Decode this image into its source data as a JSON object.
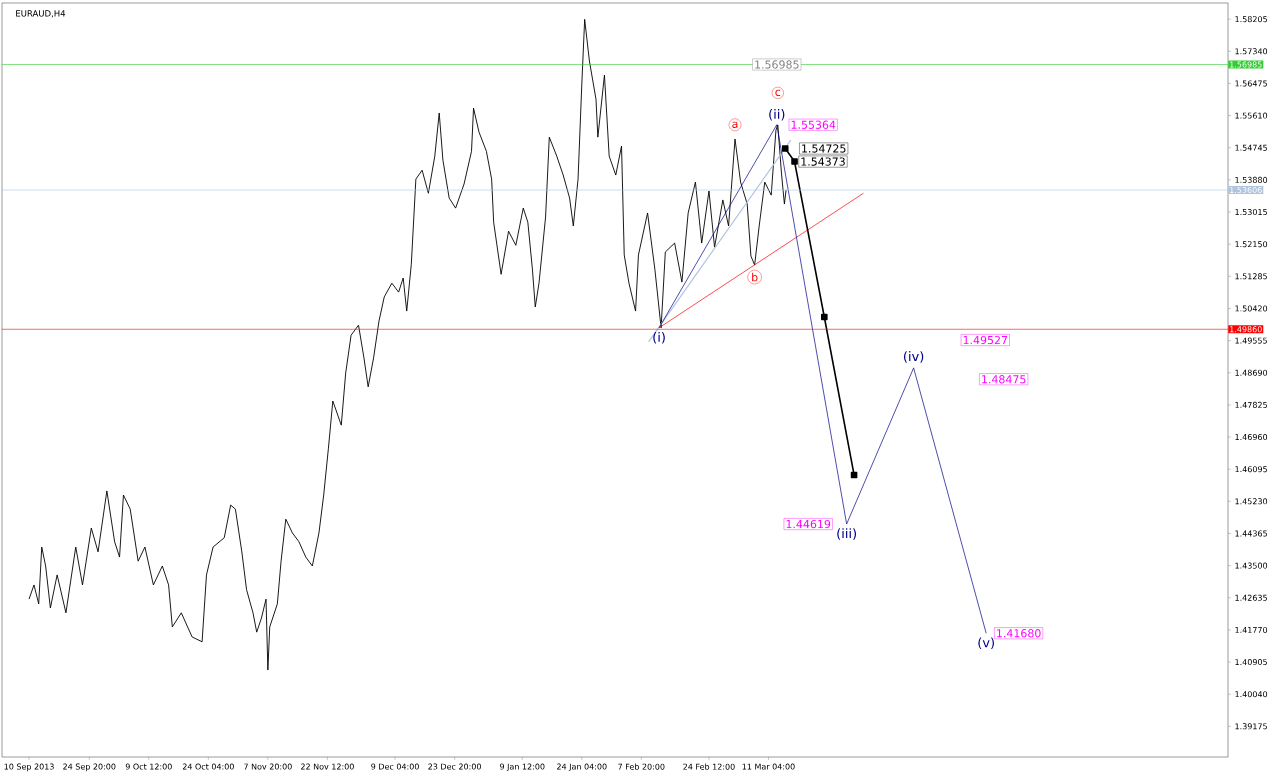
{
  "chart_data": {
    "type": "line",
    "title": "EURAUD,H4",
    "xlim": [
      "2013-09-03T08:00",
      "2014-07-02T09:00"
    ],
    "ylim": [
      1.3835,
      1.5864
    ],
    "xticks": [
      {
        "value": "2013-09-10T00:00",
        "label": "10 Sep 2013"
      },
      {
        "value": "2013-09-24T20:00",
        "label": "24 Sep 20:00"
      },
      {
        "value": "2013-10-09T12:00",
        "label": "9 Oct 12:00"
      },
      {
        "value": "2013-10-24T04:00",
        "label": "24 Oct 04:00"
      },
      {
        "value": "2013-11-07T20:00",
        "label": "7 Nov 20:00"
      },
      {
        "value": "2013-11-22T12:00",
        "label": "22 Nov 12:00"
      },
      {
        "value": "2013-12-09T04:00",
        "label": "9 Dec 04:00"
      },
      {
        "value": "2013-12-23T20:00",
        "label": "23 Dec 20:00"
      },
      {
        "value": "2014-01-09T12:00",
        "label": "9 Jan 12:00"
      },
      {
        "value": "2014-01-24T04:00",
        "label": "24 Jan 04:00"
      },
      {
        "value": "2014-02-07T20:00",
        "label": "7 Feb 20:00"
      },
      {
        "value": "2014-02-24T12:00",
        "label": "24 Feb 12:00"
      },
      {
        "value": "2014-03-11T04:00",
        "label": "11 Mar 04:00"
      }
    ],
    "yticks": [
      1.58205,
      {
        "value": 1.5734,
        "label": "1.57340"
      },
      1.56475,
      {
        "value": 1.5561,
        "label": "1.55610"
      },
      1.54745,
      {
        "value": 1.5388,
        "label": "1.53880"
      },
      1.53015,
      {
        "value": 1.5215,
        "label": "1.52150"
      },
      1.51285,
      {
        "value": 1.5042,
        "label": "1.50420"
      },
      1.49555,
      {
        "value": 1.4869,
        "label": "1.48690"
      },
      1.47825,
      {
        "value": 1.4696,
        "label": "1.46960"
      },
      1.46095,
      {
        "value": 1.4523,
        "label": "1.45230"
      },
      1.44365,
      {
        "value": 1.435,
        "label": "1.43500"
      },
      1.42635,
      {
        "value": 1.4177,
        "label": "1.41770"
      },
      1.40905,
      {
        "value": 1.4004,
        "label": "1.40040"
      },
      1.39175
    ],
    "series": [
      {
        "color": "#000000",
        "x": [
          "2013-09-10T00:00",
          "2013-09-11T05:00",
          "2013-09-12T09:00",
          "2013-09-13T03:00",
          "2013-09-14T02:00",
          "2013-09-15T06:00",
          "2013-09-16T22:00",
          "2013-09-19T02:00",
          "2013-09-21T12:00",
          "2013-09-23T04:00",
          "2013-09-25T08:00",
          "2013-09-27T00:00",
          "2013-09-29T04:00",
          "2013-10-01T02:00",
          "2013-10-02T07:00",
          "2013-10-03T06:00",
          "2013-10-04T22:00",
          "2013-10-06T21:00",
          "2013-10-08T13:00",
          "2013-10-10T15:00",
          "2013-10-12T20:00",
          "2013-10-14T09:00",
          "2013-10-15T07:00",
          "2013-10-17T12:00",
          "2013-10-20T04:00",
          "2013-10-22T15:00",
          "2013-10-23T17:00",
          "2013-10-25T08:00",
          "2013-10-28T02:00",
          "2013-10-29T16:00",
          "2013-10-30T20:00",
          "2013-11-01T10:00",
          "2013-11-02T14:00",
          "2013-11-04T04:00",
          "2013-11-05T02:00",
          "2013-11-06T06:00",
          "2013-11-07T09:00",
          "2013-11-07T20:00",
          "2013-11-08T07:00",
          "2013-11-10T04:00",
          "2013-11-11T02:00",
          "2013-11-12T06:00",
          "2013-11-13T21:00",
          "2013-11-15T12:00",
          "2013-11-17T04:00",
          "2013-11-18T19:00",
          "2013-11-20T10:00",
          "2013-11-21T14:00",
          "2013-11-22T18:00",
          "2013-11-23T20:00",
          "2013-11-25T22:00",
          "2013-11-27T00:00",
          "2013-11-28T08:00",
          "2013-11-30T04:00",
          "2013-12-01T12:00",
          "2013-12-02T13:00",
          "2013-12-03T21:00",
          "2013-12-05T05:00",
          "2013-12-06T12:00",
          "2013-12-08T09:00",
          "2013-12-10T01:00",
          "2013-12-11T04:00",
          "2013-12-12T01:00",
          "2013-12-13T04:00",
          "2013-12-14T07:00",
          "2013-12-15T20:00",
          "2013-12-17T09:00",
          "2013-12-18T23:00",
          "2013-12-20T01:00",
          "2013-12-20T23:00",
          "2013-12-22T12:00",
          "2013-12-24T02:00",
          "2013-12-26T04:00",
          "2013-12-28T00:00",
          "2013-12-28T12:00",
          "2013-12-29T20:00",
          "2013-12-31T16:00",
          "2014-01-01T23:00",
          "2014-01-02T11:00",
          "2014-01-04T07:00",
          "2014-01-06T03:00",
          "2014-01-07T22:00",
          "2014-01-09T18:00",
          "2014-01-10T21:00",
          "2014-01-12T00:00",
          "2014-01-12T17:00",
          "2014-01-13T15:00",
          "2014-01-15T06:00",
          "2014-01-16T04:00",
          "2014-01-18T00:00",
          "2014-01-19T14:00",
          "2014-01-21T04:00",
          "2014-01-22T02:00",
          "2014-01-23T06:00",
          "2014-01-24T04:00",
          "2014-01-24T21:00",
          "2014-01-26T01:00",
          "2014-01-27T16:00",
          "2014-01-28T03:00",
          "2014-01-29T18:00",
          "2014-01-30T22:00",
          "2014-02-01T13:00",
          "2014-02-02T23:00",
          "2014-02-03T15:00",
          "2014-02-04T19:00",
          "2014-02-06T10:00",
          "2014-02-07T03:00",
          "2014-02-09T09:00",
          "2014-02-11T04:00",
          "2014-02-12T17:00",
          "2014-02-13T18:00",
          "2014-02-16T01:00",
          "2014-02-17T20:00",
          "2014-02-19T09:00",
          "2014-02-21T04:00",
          "2014-02-22T17:00",
          "2014-02-24T12:00",
          "2014-02-25T21:00",
          "2014-02-27T22:00",
          "2014-03-01T08:00",
          "2014-03-02T22:00",
          "2014-03-04T07:00",
          "2014-03-05T22:00",
          "2014-03-06T20:00",
          "2014-03-07T18:00",
          "2014-03-08T21:00",
          "2014-03-10T06:00",
          "2014-03-11T20:00",
          "2014-03-13T00:00",
          "2014-03-13T11:00",
          "2014-03-14T09:00",
          "2014-03-15T02:00",
          "2014-03-15T12:00"
        ],
        "values": [
          1.426,
          1.4298,
          1.4247,
          1.44,
          1.4349,
          1.4236,
          1.4325,
          1.4223,
          1.44,
          1.4298,
          1.4451,
          1.4387,
          1.4551,
          1.4414,
          1.4373,
          1.454,
          1.4502,
          1.4362,
          1.44,
          1.4298,
          1.4349,
          1.4298,
          1.4185,
          1.4223,
          1.4158,
          1.4145,
          1.4325,
          1.44,
          1.4425,
          1.4513,
          1.4502,
          1.4387,
          1.4285,
          1.4223,
          1.4171,
          1.4209,
          1.426,
          1.4069,
          1.4185,
          1.4247,
          1.4362,
          1.4475,
          1.4438,
          1.4414,
          1.4373,
          1.4349,
          1.4438,
          1.454,
          1.4666,
          1.4793,
          1.4728,
          1.4868,
          1.497,
          1.4997,
          1.4909,
          1.4831,
          1.4909,
          1.5008,
          1.5073,
          1.511,
          1.5086,
          1.5124,
          1.5035,
          1.5161,
          1.539,
          1.5414,
          1.5352,
          1.5452,
          1.5568,
          1.5441,
          1.5339,
          1.5312,
          1.5377,
          1.5465,
          1.5581,
          1.5517,
          1.5465,
          1.539,
          1.5274,
          1.5134,
          1.525,
          1.5212,
          1.5312,
          1.5274,
          1.5148,
          1.5046,
          1.511,
          1.5288,
          1.5503,
          1.5452,
          1.5401,
          1.5339,
          1.5264,
          1.539,
          1.5643,
          1.582,
          1.5708,
          1.5605,
          1.5503,
          1.567,
          1.5452,
          1.5401,
          1.5479,
          1.5186,
          1.511,
          1.5035,
          1.5186,
          1.5299,
          1.5148,
          1.499,
          1.5194,
          1.5218,
          1.5113,
          1.5299,
          1.5382,
          1.5218,
          1.5358,
          1.5207,
          1.5334,
          1.5264,
          1.5498,
          1.5382,
          1.5323,
          1.5183,
          1.5159,
          1.5264,
          1.5382,
          1.5347,
          1.5522,
          1.5536,
          1.5404,
          1.5323,
          1.5361
        ]
      },
      {
        "color": "#b0c4de",
        "x": [
          "2014-02-09T15:00",
          "2014-03-16T16:00"
        ],
        "values": [
          1.4952,
          1.5495
        ]
      },
      {
        "color": "#ff0000",
        "x": [
          "2014-02-12T05:00",
          "2014-04-03T13:00"
        ],
        "values": [
          1.499,
          1.5352
        ]
      },
      {
        "color": "#00008b",
        "x": [
          "2014-02-12T05:00",
          "2014-03-13T05:00",
          "2014-03-30T10:00",
          "2014-04-15T22:00",
          "2014-05-03T19:00"
        ],
        "values": [
          1.499,
          1.55364,
          1.44619,
          1.4882,
          1.4168
        ]
      },
      {
        "color": "#000000",
        "x": [
          "2014-03-15T07:00",
          "2014-03-17T14:00",
          "2014-03-24T22:00",
          "2014-04-01T06:00"
        ],
        "values": [
          1.54725,
          1.54373,
          1.5019,
          1.4594
        ],
        "marker": "square"
      }
    ],
    "ref_lines": [
      {
        "axis": "y",
        "value": 1.56985,
        "label": "1.56985",
        "color": "#32cd32"
      },
      {
        "axis": "y",
        "value": 1.53606,
        "label": "1.53606",
        "color": "#b0c4de"
      },
      {
        "axis": "y",
        "value": 1.4986,
        "label": "1.49860",
        "color": "#ff0000"
      }
    ],
    "annotations": [
      {
        "text": "1.56985",
        "x": "2014-03-13T05:00",
        "y": 1.56985
      },
      {
        "text": "1.55364",
        "x": "2014-03-13T05:00",
        "y": 1.55364
      },
      {
        "text": "1.54725",
        "x": "2014-03-15T07:00",
        "y": 1.54725
      },
      {
        "text": "1.54373",
        "x": "2014-03-17T14:00",
        "y": 1.54373
      },
      "1.49527",
      "1.48475",
      {
        "text": "1.44619",
        "x": "2014-03-30T10:00",
        "y": 1.44619
      },
      {
        "text": "1.41680",
        "x": "2014-05-03T19:00",
        "y": 1.4168
      },
      {
        "text": "(i)",
        "x": "2014-02-12T05:00",
        "y": 1.499
      },
      {
        "text": "(ii)",
        "x": "2014-03-13T05:00",
        "y": 1.55364
      },
      {
        "text": "(iii)",
        "x": "2014-03-30T10:00",
        "y": 1.44619
      },
      {
        "text": "(iv)",
        "x": "2014-04-15T22:00",
        "y": 1.4882
      },
      {
        "text": "(v)",
        "x": "2014-05-03T19:00",
        "y": 1.4168
      },
      {
        "text": "a",
        "x": "2014-03-02T22:00",
        "y": 1.5498
      },
      {
        "text": "b",
        "x": "2014-03-07T18:00",
        "y": 1.5159
      },
      {
        "text": "c",
        "x": "2014-03-13T11:00",
        "y": 1.5536
      }
    ]
  }
}
